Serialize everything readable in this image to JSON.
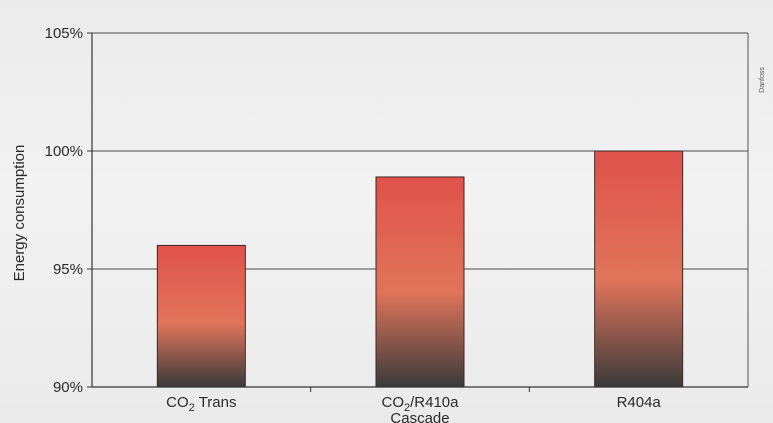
{
  "chart_data": {
    "type": "bar",
    "categories": [
      "CO2 Trans",
      "CO2/R410a Cascade",
      "R404a"
    ],
    "category_labels": [
      {
        "line1_prefix": "CO",
        "line1_sub": "2",
        "line1_suffix": " Trans",
        "line2": ""
      },
      {
        "line1_prefix": "CO",
        "line1_sub": "2",
        "line1_suffix": "/R410a",
        "line2": "Cascade"
      },
      {
        "line1_prefix": "R404a",
        "line1_sub": "",
        "line1_suffix": "",
        "line2": ""
      }
    ],
    "values": [
      96.0,
      98.9,
      100.0
    ],
    "ylabel": "Energy consumption",
    "ylim": [
      90,
      105
    ],
    "yticks": [
      90,
      95,
      100,
      105
    ],
    "ytick_labels": [
      "90%",
      "95%",
      "100%",
      "105%"
    ],
    "grid": true,
    "bar_color_top": "#e0524a",
    "bar_color_mid": "#e0745a",
    "bar_color_bottom": "#3a3a3a",
    "credit_text": "Danfoss"
  }
}
